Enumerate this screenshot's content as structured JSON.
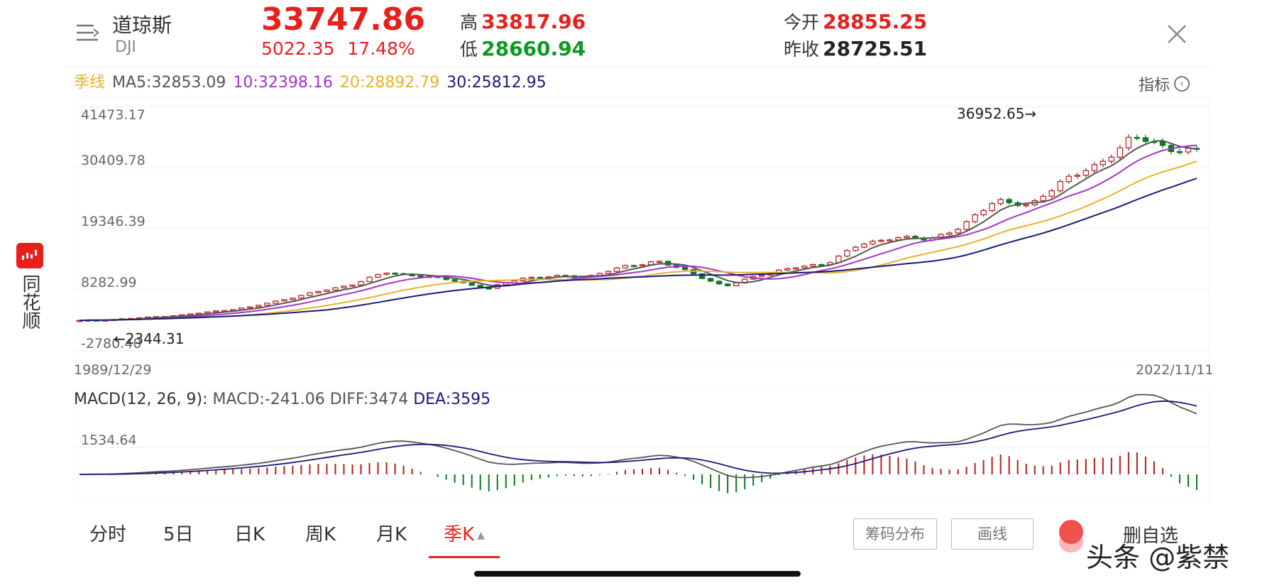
{
  "header": {
    "name": "道琼斯",
    "code": "DJI",
    "price": "33747.86",
    "change": "5022.35",
    "change_pct": "17.48%",
    "high_label": "高",
    "high": "33817.96",
    "low_label": "低",
    "low": "28660.94",
    "open_label": "今开",
    "open": "28855.25",
    "prev_close_label": "昨收",
    "prev_close": "28725.51"
  },
  "ma_bar": {
    "period": "季线",
    "ma5": "MA5:32853.09",
    "ma10": "10:32398.16",
    "ma20": "20:28892.79",
    "ma30": "30:25812.95",
    "indicator_label": "指标",
    "indicator_icon": "chevron-left-circle-icon"
  },
  "side_brand": {
    "text": "同花顺",
    "icon": "candlestick-logo-icon"
  },
  "main_chart": {
    "y_ticks": [
      "41473.17",
      "30409.78",
      "19346.39",
      "8282.99",
      "-2780.40"
    ],
    "max_label": "36952.65→",
    "min_label": "←2344.31",
    "start_date": "1989/12/29",
    "end_date": "2022/11/11"
  },
  "macd": {
    "label": "MACD(12, 26, 9):",
    "macd": "MACD:-241.06",
    "diff": "DIFF:3474",
    "dea": "DEA:3595",
    "y_tick": "1534.64"
  },
  "tabs": [
    {
      "label": "分时",
      "active": false
    },
    {
      "label": "5日",
      "active": false
    },
    {
      "label": "日K",
      "active": false
    },
    {
      "label": "周K",
      "active": false
    },
    {
      "label": "月K",
      "active": false
    },
    {
      "label": "季K",
      "active": true
    }
  ],
  "tab_dropdown_icon": "triangle-up-icon",
  "buttons": {
    "chips": "筹码分布",
    "draw": "画线",
    "favorite": "删自选"
  },
  "watermark": "头条 @紫禁",
  "colors": {
    "up": "#e8201c",
    "down": "#0b9a24",
    "ma5": "#555555",
    "ma10": "#a335c9",
    "ma20": "#e9b22a",
    "ma30": "#1a1a7a"
  },
  "chart_data": {
    "type": "candlestick",
    "x_range": [
      "1989/12/29",
      "2022/11/11"
    ],
    "ylim": [
      -2780.4,
      41473.17
    ],
    "close_anchors": [
      [
        1990,
        2700
      ],
      [
        1991,
        2900
      ],
      [
        1993,
        3700
      ],
      [
        1995,
        5100
      ],
      [
        1996,
        6500
      ],
      [
        1997,
        7900
      ],
      [
        1998,
        9200
      ],
      [
        1999,
        11400
      ],
      [
        2000,
        10800
      ],
      [
        2001,
        10000
      ],
      [
        2002,
        8400
      ],
      [
        2003,
        10400
      ],
      [
        2004,
        10700
      ],
      [
        2005,
        10700
      ],
      [
        2006,
        12400
      ],
      [
        2007,
        13500
      ],
      [
        2008,
        11400
      ],
      [
        2009,
        8800
      ],
      [
        2010,
        11000
      ],
      [
        2011,
        12200
      ],
      [
        2012,
        13100
      ],
      [
        2013,
        16500
      ],
      [
        2014,
        17800
      ],
      [
        2015,
        17400
      ],
      [
        2016,
        19700
      ],
      [
        2017,
        24700
      ],
      [
        2018,
        23300
      ],
      [
        2019,
        28500
      ],
      [
        2020,
        30600
      ],
      [
        2021,
        36300
      ],
      [
        2022,
        33747.86
      ]
    ],
    "high": 36952.65,
    "low": 2344.31,
    "macd_tick": 1534.64
  }
}
